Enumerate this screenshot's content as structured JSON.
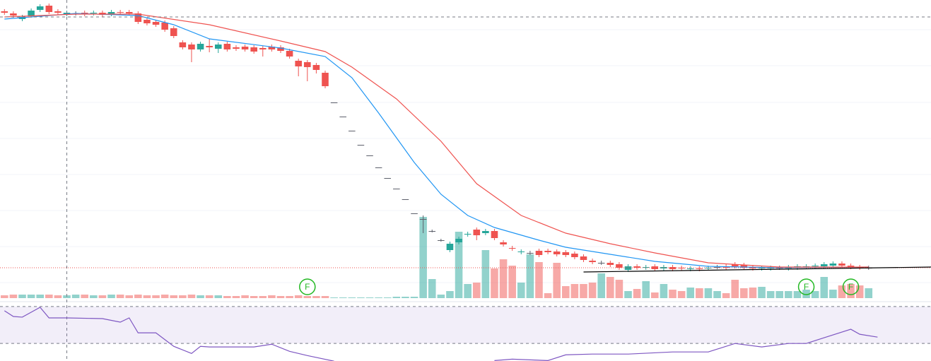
{
  "chart_data": {
    "type": "candlestick",
    "xlim": [
      -0.5,
      104
    ],
    "ylim": [
      0,
      430
    ],
    "gridlines": [
      388,
      337,
      285,
      234,
      183,
      132,
      81,
      30
    ],
    "up_color": "#26a69a",
    "down_color": "#ef5350",
    "flat_color": "#5d606b",
    "candles": [
      [
        414,
        417,
        409,
        412
      ],
      [
        411,
        414,
        405,
        408
      ],
      [
        403,
        409,
        400,
        406
      ],
      [
        408,
        418,
        405,
        415
      ],
      [
        416,
        424,
        413,
        421
      ],
      [
        422,
        425,
        410,
        413
      ],
      [
        414,
        417,
        409,
        412
      ],
      [
        410,
        415,
        407,
        412
      ],
      [
        411,
        414,
        408,
        411
      ],
      [
        412,
        415,
        407,
        410
      ],
      [
        411,
        415,
        408,
        412
      ],
      [
        412,
        415,
        406,
        409
      ],
      [
        410,
        416,
        407,
        413
      ],
      [
        413,
        416,
        409,
        412
      ],
      [
        413,
        416,
        408,
        411
      ],
      [
        411,
        414,
        396,
        399
      ],
      [
        402,
        405,
        394,
        397
      ],
      [
        399,
        402,
        392,
        395
      ],
      [
        398,
        401,
        385,
        388
      ],
      [
        390,
        393,
        376,
        379
      ],
      [
        370,
        373,
        360,
        363
      ],
      [
        367,
        370,
        342,
        360
      ],
      [
        360,
        371,
        357,
        368
      ],
      [
        365,
        375,
        356,
        363
      ],
      [
        361,
        370,
        355,
        367
      ],
      [
        368,
        371,
        357,
        360
      ],
      [
        363,
        366,
        358,
        361
      ],
      [
        364,
        367,
        357,
        360
      ],
      [
        363,
        366,
        354,
        357
      ],
      [
        362,
        365,
        350,
        360
      ],
      [
        364,
        367,
        357,
        360
      ],
      [
        363,
        366,
        355,
        358
      ],
      [
        358,
        361,
        347,
        350
      ],
      [
        344,
        347,
        322,
        336
      ],
      [
        342,
        345,
        315,
        335
      ],
      [
        338,
        341,
        326,
        331
      ],
      [
        327,
        330,
        305,
        308
      ],
      [
        285,
        285,
        285,
        285
      ],
      [
        265,
        265,
        265,
        265
      ],
      [
        245,
        245,
        245,
        245
      ],
      [
        225,
        225,
        225,
        225
      ],
      [
        210,
        210,
        210,
        210
      ],
      [
        193,
        193,
        193,
        193
      ],
      [
        178,
        178,
        178,
        178
      ],
      [
        163,
        163,
        163,
        163
      ],
      [
        148,
        148,
        148,
        148
      ],
      [
        128,
        128,
        128,
        128
      ],
      [
        120,
        125,
        100,
        120
      ],
      [
        103,
        105,
        101,
        103
      ],
      [
        90,
        92,
        88,
        90
      ],
      [
        76,
        88,
        73,
        85
      ],
      [
        87,
        95,
        84,
        92
      ],
      [
        98,
        102,
        95,
        99
      ],
      [
        105,
        108,
        90,
        97
      ],
      [
        100,
        106,
        97,
        103
      ],
      [
        103,
        106,
        90,
        93
      ],
      [
        87,
        90,
        81,
        84
      ],
      [
        79,
        82,
        75,
        78
      ],
      [
        73,
        77,
        70,
        74
      ],
      [
        72,
        75,
        69,
        72
      ],
      [
        75,
        78,
        66,
        69
      ],
      [
        75,
        78,
        70,
        73
      ],
      [
        74,
        77,
        67,
        70
      ],
      [
        73,
        76,
        66,
        69
      ],
      [
        71,
        74,
        63,
        66
      ],
      [
        67,
        70,
        59,
        62
      ],
      [
        61,
        64,
        56,
        59
      ],
      [
        58,
        61,
        55,
        58
      ],
      [
        58,
        61,
        52,
        55
      ],
      [
        56,
        59,
        48,
        51
      ],
      [
        48,
        56,
        45,
        53
      ],
      [
        53,
        56,
        48,
        51
      ],
      [
        51,
        55,
        48,
        52
      ],
      [
        53,
        56,
        46,
        49
      ],
      [
        50,
        55,
        47,
        52
      ],
      [
        52,
        55,
        46,
        49
      ],
      [
        51,
        54,
        47,
        50
      ],
      [
        49,
        53,
        46,
        50
      ],
      [
        50,
        53,
        46,
        49
      ],
      [
        50,
        54,
        47,
        51
      ],
      [
        52,
        55,
        49,
        52
      ],
      [
        53,
        56,
        48,
        51
      ],
      [
        56,
        59,
        50,
        53
      ],
      [
        55,
        58,
        48,
        51
      ],
      [
        52,
        55,
        47,
        50
      ],
      [
        50,
        54,
        47,
        51
      ],
      [
        50,
        54,
        47,
        51
      ],
      [
        51,
        54,
        48,
        51
      ],
      [
        50,
        55,
        47,
        52
      ],
      [
        51,
        56,
        48,
        53
      ],
      [
        52,
        56,
        49,
        53
      ],
      [
        53,
        57,
        50,
        54
      ],
      [
        53,
        59,
        50,
        56
      ],
      [
        54,
        60,
        51,
        57
      ],
      [
        57,
        60,
        51,
        54
      ],
      [
        54,
        57,
        49,
        52
      ],
      [
        52,
        55,
        48,
        51
      ],
      [
        51,
        54,
        48,
        51
      ]
    ],
    "volume_ylim": [
      0,
      130
    ],
    "volume": [
      4,
      5,
      5,
      5,
      5,
      5,
      4,
      4,
      5,
      5,
      4,
      4,
      5,
      5,
      4,
      5,
      4,
      4,
      5,
      4,
      4,
      5,
      4,
      4,
      4,
      3,
      3,
      4,
      3,
      3,
      4,
      3,
      3,
      4,
      3,
      3,
      3,
      1,
      1,
      1,
      1,
      1,
      1,
      1,
      2,
      2,
      2,
      115,
      27,
      5,
      10,
      94,
      20,
      22,
      68,
      42,
      55,
      46,
      22,
      62,
      51,
      7,
      50,
      17,
      20,
      20,
      22,
      35,
      30,
      26,
      10,
      13,
      24,
      8,
      20,
      12,
      10,
      15,
      14,
      14,
      10,
      7,
      26,
      14,
      15,
      16,
      10,
      10,
      10,
      10,
      12,
      10,
      30,
      12,
      18,
      20,
      18,
      14
    ],
    "moving_averages": [
      {
        "color": "#2196f3",
        "x": [
          0,
          8,
          15,
          19,
          23,
          31,
          36,
          39,
          42,
          46,
          49,
          52,
          55,
          60,
          63,
          68,
          73,
          79,
          87,
          97
        ],
        "values": [
          403,
          411,
          408,
          395,
          375,
          362,
          350,
          320,
          270,
          200,
          155,
          125,
          108,
          90,
          80,
          70,
          60,
          53,
          51,
          52
        ]
      },
      {
        "color": "#ef5350",
        "x": [
          0,
          8,
          15,
          23,
          31,
          36,
          39,
          44,
          49,
          53,
          58,
          63,
          68,
          73,
          79,
          87,
          97
        ],
        "values": [
          406,
          410,
          410,
          395,
          372,
          357,
          335,
          290,
          230,
          170,
          125,
          100,
          85,
          72,
          58,
          52,
          52
        ]
      }
    ],
    "trend_line": {
      "color": "#000000",
      "x": [
        65,
        104
      ],
      "values": [
        45,
        52
      ]
    },
    "crosshair": {
      "x": 7,
      "y": 406
    },
    "last_price": {
      "value": 51,
      "color": "#ef5350"
    },
    "markers": [
      {
        "label": "F",
        "x": 34
      },
      {
        "label": "F",
        "x": 90
      },
      {
        "label": "F",
        "x": 95
      }
    ],
    "marker_color": "#22b822",
    "rsi": {
      "color": "#7e57c2",
      "ylim": [
        11,
        73
      ],
      "levels": [
        70,
        30
      ],
      "x": [
        0,
        1,
        2,
        4,
        5,
        7,
        11,
        13,
        14,
        15,
        17,
        19,
        21,
        22,
        23,
        28,
        30,
        32,
        34,
        37,
        40,
        55,
        57,
        61,
        63,
        66,
        70,
        75,
        79,
        82,
        85,
        88,
        90,
        92,
        95,
        96,
        98
      ],
      "values": [
        65.4,
        59.2,
        58.5,
        69.2,
        57.7,
        57.7,
        56.9,
        53.1,
        57.7,
        41.5,
        41.5,
        26.9,
        19.2,
        26.9,
        26.2,
        26.2,
        29.2,
        21.5,
        16.9,
        10.8,
        null,
        11.5,
        13,
        11.5,
        17.7,
        18.5,
        18.5,
        20.8,
        20.8,
        30,
        26.2,
        30,
        30,
        36.2,
        45.4,
        40,
        36.9
      ]
    }
  }
}
